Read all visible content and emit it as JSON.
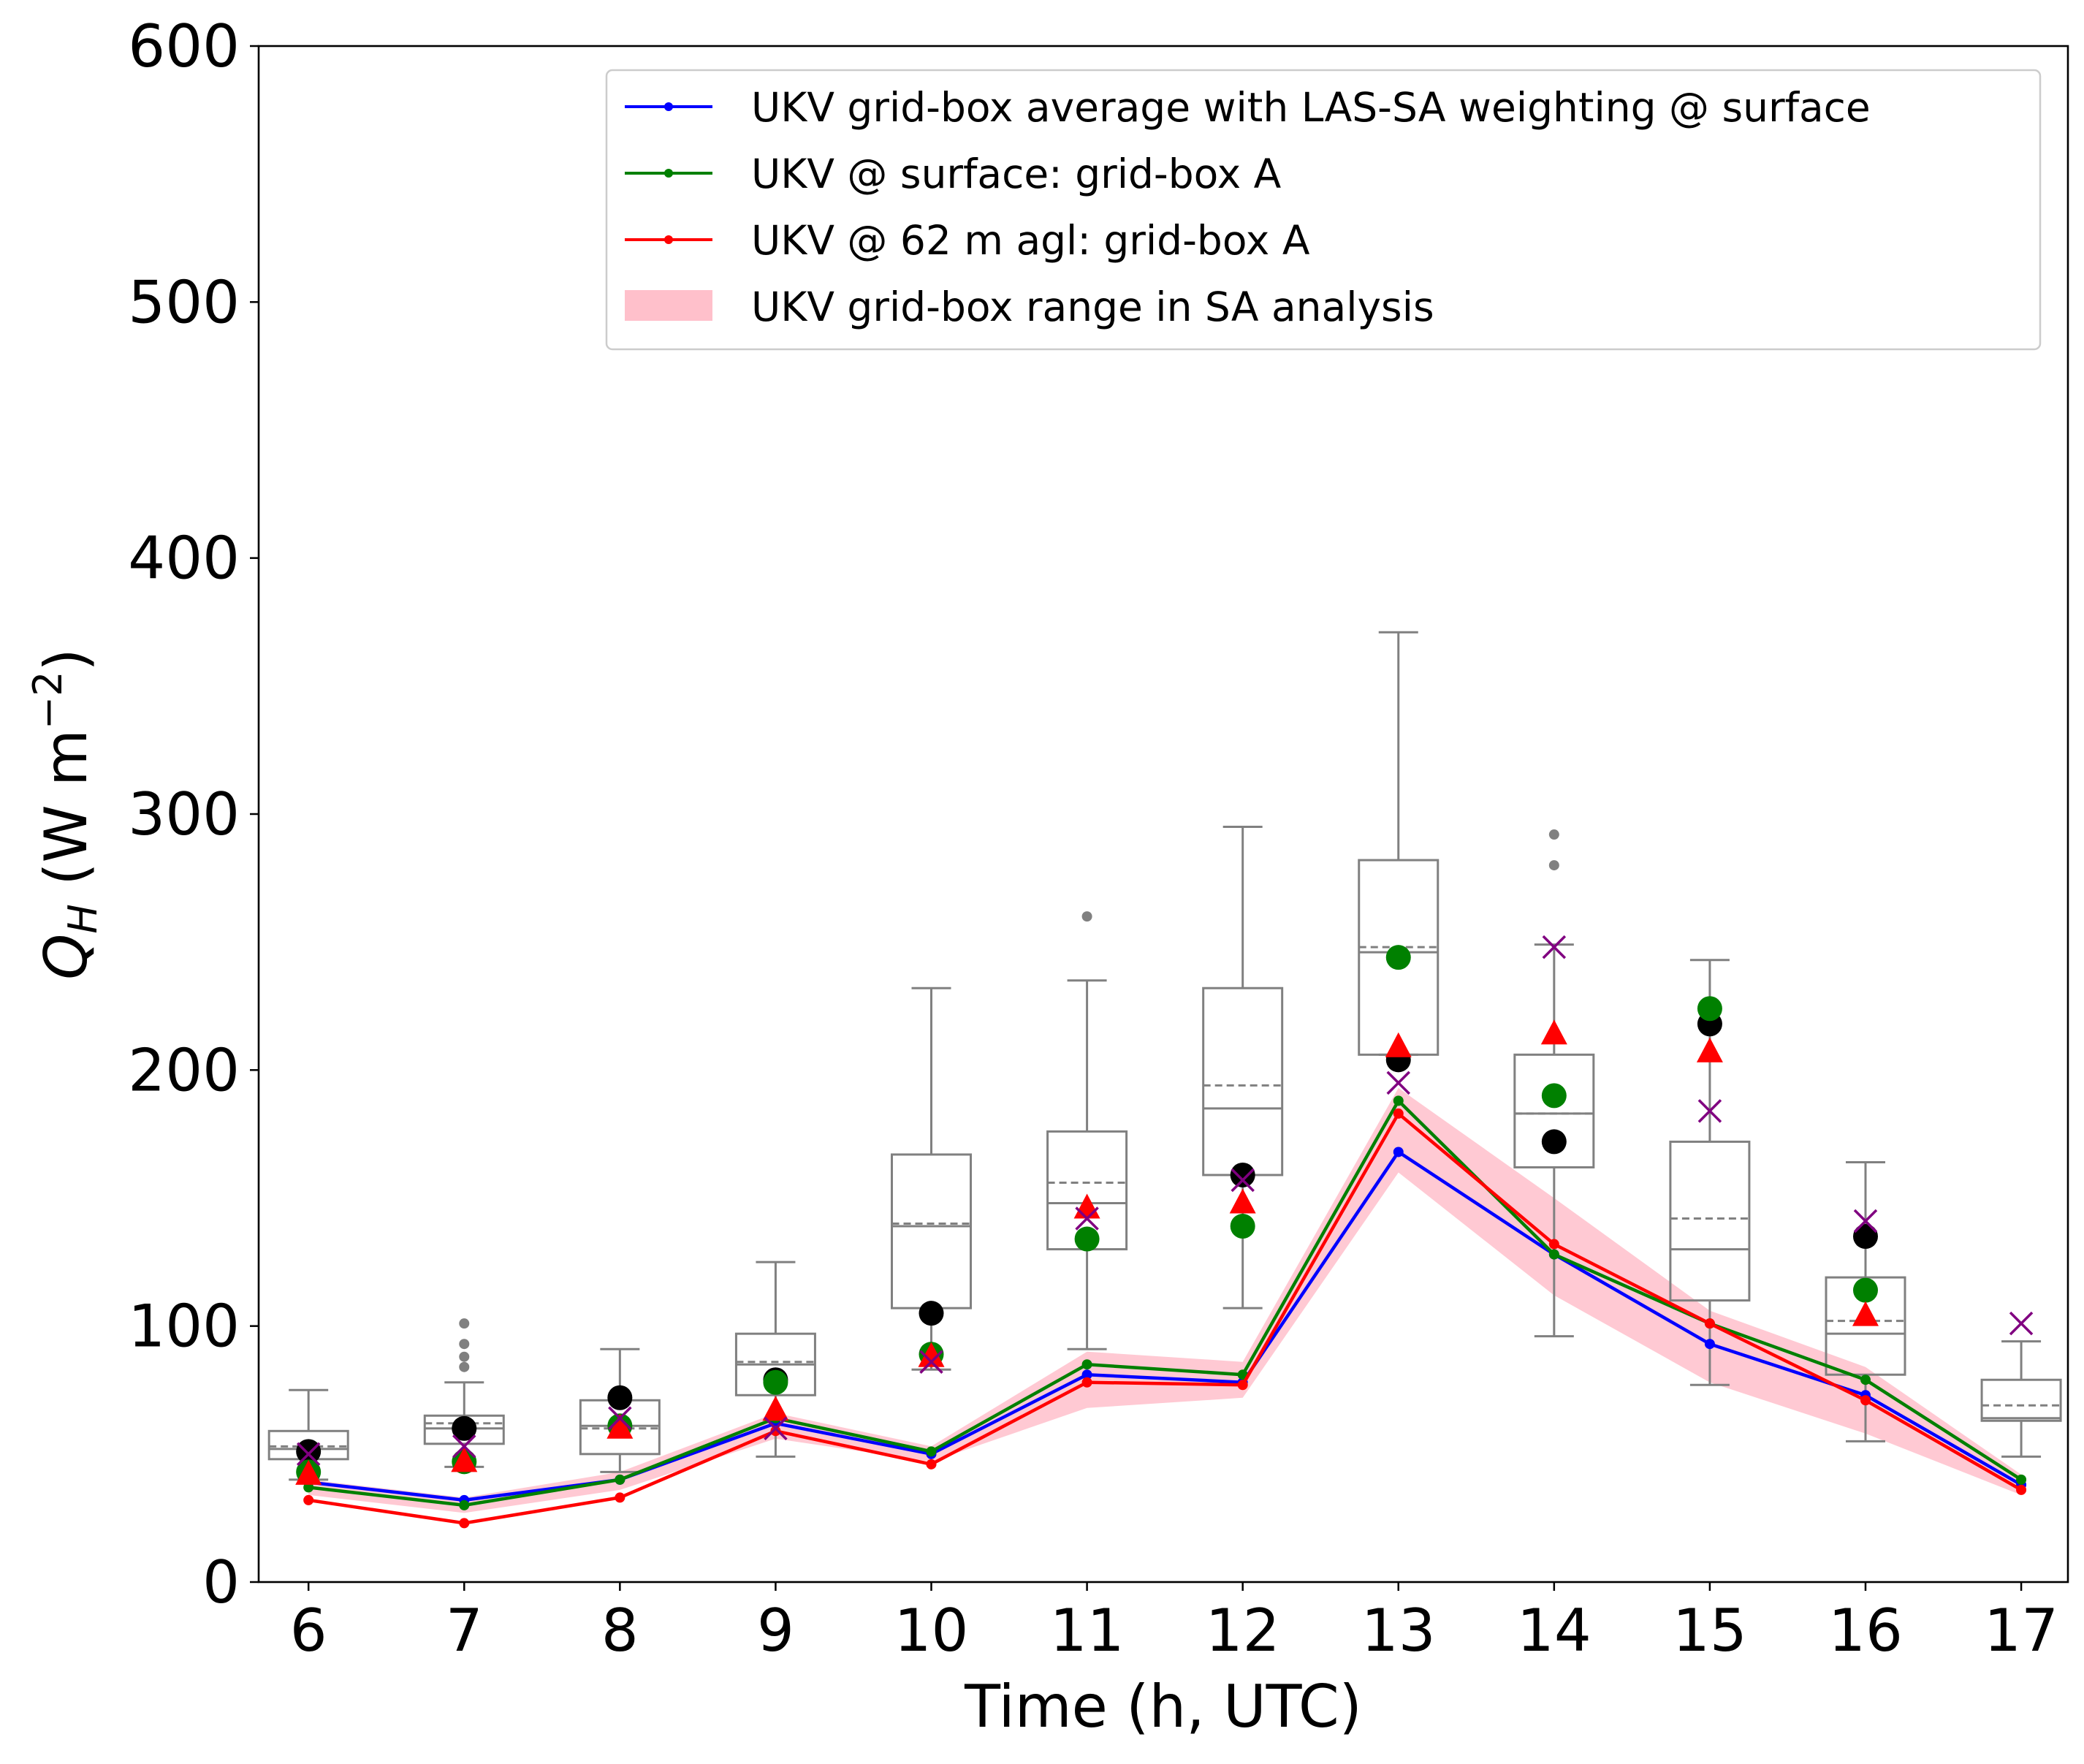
{
  "chart_data": {
    "type": "line",
    "xlabel": "Time (h, UTC)",
    "ylabel_symbol": "Q",
    "ylabel_subscript": "H",
    "ylabel_units_open": " (W m",
    "ylabel_units_exp": "−2",
    "ylabel_units_close": ")",
    "xlim": [
      5.68,
      17.3
    ],
    "ylim": [
      0,
      600
    ],
    "x_ticks": [
      6,
      7,
      8,
      9,
      10,
      11,
      12,
      13,
      14,
      15,
      16,
      17
    ],
    "y_ticks": [
      0,
      100,
      200,
      300,
      400,
      500,
      600
    ],
    "legend_position": "top-right",
    "colors": {
      "blue": "#0000ff",
      "green": "#008000",
      "red": "#ff0000",
      "band": "#ffc0cb",
      "box": "#808080",
      "black": "#000000",
      "purple": "#800080"
    },
    "series": [
      {
        "name": "UKV grid-box average with LAS-SA weighting @ surface",
        "color": "#0000ff",
        "x": [
          6,
          7,
          8,
          9,
          10,
          11,
          12,
          13,
          14,
          15,
          16,
          17
        ],
        "values": [
          39,
          32,
          40,
          62,
          50,
          81,
          78,
          168,
          128,
          93,
          73,
          38
        ]
      },
      {
        "name": "UKV @ surface: grid-box A",
        "color": "#008000",
        "x": [
          6,
          7,
          8,
          9,
          10,
          11,
          12,
          13,
          14,
          15,
          16,
          17
        ],
        "values": [
          37,
          30,
          40,
          64,
          51,
          85,
          81,
          188,
          128,
          101,
          79,
          40
        ]
      },
      {
        "name": "UKV @ 62 m agl: grid-box A",
        "color": "#ff0000",
        "x": [
          6,
          7,
          8,
          9,
          10,
          11,
          12,
          13,
          14,
          15,
          16,
          17
        ],
        "values": [
          32,
          23,
          33,
          59,
          46,
          78,
          77,
          183,
          132,
          101,
          71,
          36
        ]
      }
    ],
    "band": {
      "name": "UKV grid-box range in SA analysis",
      "x": [
        6,
        7,
        8,
        9,
        10,
        11,
        12,
        13,
        14,
        15,
        16,
        17
      ],
      "lower": [
        34,
        27,
        36,
        56,
        47,
        68,
        72,
        160,
        112,
        78,
        58,
        34
      ],
      "upper": [
        40,
        33,
        43,
        66,
        53,
        90,
        86,
        193,
        150,
        106,
        84,
        42
      ]
    },
    "boxplots": [
      {
        "x": 6,
        "whislo": 40,
        "q1": 48,
        "med": 52,
        "mean": 53,
        "q3": 59,
        "whishi": 75,
        "fliers": []
      },
      {
        "x": 7,
        "whislo": 45,
        "q1": 54,
        "med": 60,
        "mean": 62,
        "q3": 65,
        "whishi": 78,
        "fliers": [
          84,
          88,
          93,
          101
        ]
      },
      {
        "x": 8,
        "whislo": 43,
        "q1": 50,
        "med": 61,
        "mean": 60,
        "q3": 71,
        "whishi": 91,
        "fliers": []
      },
      {
        "x": 9,
        "whislo": 49,
        "q1": 73,
        "med": 85,
        "mean": 86,
        "q3": 97,
        "whishi": 125,
        "fliers": []
      },
      {
        "x": 10,
        "whislo": 83,
        "q1": 107,
        "med": 139,
        "mean": 140,
        "q3": 167,
        "whishi": 232,
        "fliers": []
      },
      {
        "x": 11,
        "whislo": 91,
        "q1": 130,
        "med": 148,
        "mean": 156,
        "q3": 176,
        "whishi": 235,
        "fliers": [
          260
        ]
      },
      {
        "x": 12,
        "whislo": 107,
        "q1": 159,
        "med": 185,
        "mean": 194,
        "q3": 232,
        "whishi": 295,
        "fliers": []
      },
      {
        "x": 13,
        "whislo": 206,
        "q1": 206,
        "med": 246,
        "mean": 248,
        "q3": 282,
        "whishi": 371,
        "fliers": []
      },
      {
        "x": 14,
        "whislo": 96,
        "q1": 162,
        "med": 183,
        "mean": 183,
        "q3": 206,
        "whishi": 249,
        "fliers": [
          280,
          292
        ]
      },
      {
        "x": 15,
        "whislo": 77,
        "q1": 110,
        "med": 130,
        "mean": 142,
        "q3": 172,
        "whishi": 243,
        "fliers": []
      },
      {
        "x": 16,
        "whislo": 55,
        "q1": 81,
        "med": 97,
        "mean": 102,
        "q3": 119,
        "whishi": 164,
        "fliers": []
      },
      {
        "x": 17,
        "whislo": 49,
        "q1": 63,
        "med": 64,
        "mean": 69,
        "q3": 79,
        "whishi": 94,
        "fliers": []
      }
    ],
    "markers": {
      "black_circles": [
        [
          6,
          51
        ],
        [
          7,
          60
        ],
        [
          8,
          72
        ],
        [
          9,
          79
        ],
        [
          10,
          105
        ],
        [
          12,
          159
        ],
        [
          13,
          204
        ],
        [
          14,
          172
        ],
        [
          15,
          218
        ],
        [
          16,
          135
        ]
      ],
      "green_circles": [
        [
          6,
          43
        ],
        [
          7,
          47
        ],
        [
          8,
          61
        ],
        [
          9,
          78
        ],
        [
          10,
          89
        ],
        [
          11,
          134
        ],
        [
          12,
          139
        ],
        [
          13,
          244
        ],
        [
          14,
          190
        ],
        [
          15,
          224
        ],
        [
          16,
          114
        ]
      ],
      "red_triangles": [
        [
          6,
          42
        ],
        [
          7,
          47
        ],
        [
          8,
          60
        ],
        [
          9,
          67
        ],
        [
          10,
          88
        ],
        [
          11,
          146
        ],
        [
          12,
          148
        ],
        [
          13,
          209
        ],
        [
          14,
          214
        ],
        [
          15,
          207
        ],
        [
          16,
          104
        ]
      ],
      "purple_crosses": [
        [
          6,
          50
        ],
        [
          7,
          53
        ],
        [
          8,
          64
        ],
        [
          9,
          60
        ],
        [
          10,
          86
        ],
        [
          11,
          142
        ],
        [
          12,
          157
        ],
        [
          13,
          195
        ],
        [
          14,
          248
        ],
        [
          15,
          184
        ],
        [
          16,
          141
        ],
        [
          17,
          101
        ]
      ]
    }
  }
}
